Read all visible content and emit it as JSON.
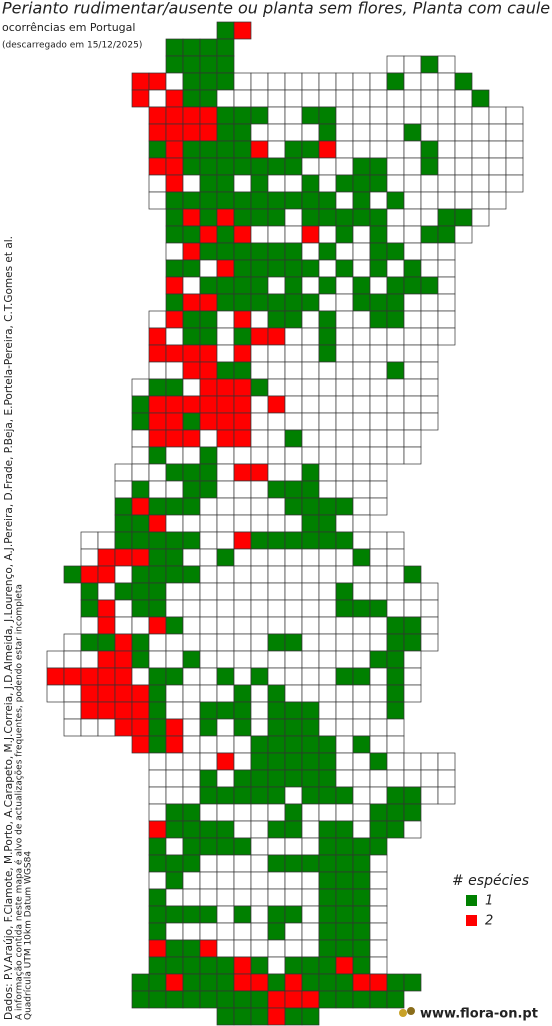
{
  "header": {
    "title": "Perianto rudimentar/ausente ou planta sem flores, Planta com caule e",
    "subtitle": "ocorrências em Portugal",
    "date": "(descarregado em 15/12/2025)"
  },
  "credits": [
    "Dados: P.V.Araújo, F.Clamote, M.Porto, A.Carapeto, M.J.Correia, J.D.Almeida, J.Lourenço, A.J.Pereira, D.Frade, P.Beja, E.Portela-Pereira, C.T.Gomes et al.",
    "A informação contida neste mapa é alvo de actualizações frequentes, podendo estar incompleta",
    "Quadrícula UTM 10km Datum WGS84"
  ],
  "legend": {
    "title": "# espécies",
    "items": [
      {
        "value": 1,
        "color": "#008000"
      },
      {
        "value": 2,
        "color": "#ff0000"
      }
    ]
  },
  "empty_color": "#ffffff",
  "logo": "www.flora-on.pt",
  "map": {
    "rows": [
      [
        null,
        null,
        null,
        null,
        null,
        null,
        null,
        null,
        null,
        null,
        1,
        2
      ],
      [
        null,
        null,
        null,
        null,
        null,
        null,
        null,
        1,
        1,
        1,
        1
      ],
      [
        null,
        null,
        null,
        null,
        null,
        null,
        null,
        1,
        1,
        1,
        1,
        null,
        null,
        null,
        null,
        null,
        null,
        null,
        null,
        null,
        0,
        0,
        1,
        0
      ],
      [
        null,
        null,
        null,
        null,
        null,
        2,
        2,
        0,
        1,
        1,
        1,
        0,
        0,
        0,
        0,
        0,
        0,
        0,
        0,
        0,
        1,
        0,
        0,
        0,
        1
      ],
      [
        null,
        null,
        null,
        null,
        null,
        2,
        0,
        2,
        1,
        1,
        0,
        0,
        0,
        0,
        0,
        0,
        0,
        0,
        0,
        0,
        0,
        0,
        0,
        0,
        0,
        1
      ],
      [
        null,
        null,
        null,
        null,
        null,
        null,
        2,
        2,
        2,
        2,
        1,
        1,
        1,
        0,
        0,
        1,
        1,
        0,
        0,
        0,
        0,
        0,
        0,
        0,
        0,
        0,
        0,
        0
      ],
      [
        null,
        null,
        null,
        null,
        null,
        null,
        2,
        2,
        2,
        2,
        1,
        1,
        0,
        0,
        0,
        0,
        1,
        0,
        0,
        0,
        0,
        1,
        0,
        0,
        0,
        0,
        0,
        0
      ],
      [
        null,
        null,
        null,
        null,
        null,
        null,
        1,
        2,
        1,
        1,
        1,
        1,
        2,
        0,
        1,
        1,
        2,
        0,
        0,
        0,
        0,
        0,
        1,
        0,
        0,
        0,
        0,
        0
      ],
      [
        null,
        null,
        null,
        null,
        null,
        null,
        2,
        2,
        1,
        1,
        1,
        1,
        1,
        1,
        1,
        0,
        0,
        0,
        1,
        1,
        0,
        0,
        1,
        0,
        0,
        0,
        0,
        0
      ],
      [
        null,
        null,
        null,
        null,
        null,
        null,
        0,
        2,
        0,
        1,
        1,
        0,
        1,
        0,
        0,
        1,
        0,
        1,
        1,
        1,
        0,
        0,
        0,
        0,
        0,
        0,
        0,
        0
      ],
      [
        null,
        null,
        null,
        null,
        null,
        null,
        0,
        1,
        1,
        1,
        1,
        1,
        1,
        1,
        1,
        1,
        1,
        0,
        1,
        0,
        1,
        0,
        0,
        0,
        0,
        0,
        0
      ],
      [
        null,
        null,
        null,
        null,
        null,
        null,
        null,
        1,
        2,
        1,
        2,
        1,
        1,
        1,
        0,
        1,
        1,
        1,
        1,
        1,
        0,
        0,
        0,
        1,
        1,
        0
      ],
      [
        null,
        null,
        null,
        null,
        null,
        null,
        null,
        1,
        1,
        2,
        1,
        2,
        0,
        0,
        0,
        2,
        0,
        1,
        0,
        1,
        0,
        0,
        1,
        1,
        0
      ],
      [
        null,
        null,
        null,
        null,
        null,
        null,
        null,
        0,
        2,
        1,
        1,
        1,
        1,
        1,
        1,
        0,
        1,
        0,
        0,
        1,
        1,
        0,
        0,
        0
      ],
      [
        null,
        null,
        null,
        null,
        null,
        null,
        null,
        1,
        1,
        0,
        2,
        1,
        1,
        1,
        1,
        1,
        0,
        1,
        0,
        1,
        0,
        1,
        0,
        0
      ],
      [
        null,
        null,
        null,
        null,
        null,
        null,
        null,
        2,
        0,
        1,
        1,
        1,
        1,
        0,
        1,
        0,
        1,
        0,
        1,
        0,
        1,
        1,
        1,
        0
      ],
      [
        null,
        null,
        null,
        null,
        null,
        null,
        null,
        1,
        2,
        2,
        1,
        1,
        1,
        1,
        1,
        1,
        0,
        0,
        1,
        1,
        1,
        0,
        0,
        0
      ],
      [
        null,
        null,
        null,
        null,
        null,
        null,
        0,
        2,
        1,
        1,
        0,
        2,
        0,
        1,
        1,
        0,
        1,
        0,
        0,
        1,
        1,
        0,
        0,
        0
      ],
      [
        null,
        null,
        null,
        null,
        null,
        null,
        2,
        0,
        1,
        1,
        0,
        1,
        2,
        2,
        0,
        0,
        1,
        0,
        0,
        0,
        0,
        0,
        0,
        0
      ],
      [
        null,
        null,
        null,
        null,
        null,
        null,
        2,
        2,
        2,
        2,
        0,
        2,
        0,
        0,
        0,
        0,
        1,
        0,
        0,
        0,
        0,
        0,
        0
      ],
      [
        null,
        null,
        null,
        null,
        null,
        null,
        0,
        0,
        2,
        2,
        1,
        1,
        0,
        0,
        0,
        0,
        0,
        0,
        0,
        0,
        1,
        0,
        0
      ],
      [
        null,
        null,
        null,
        null,
        null,
        0,
        1,
        1,
        0,
        2,
        2,
        2,
        1,
        0,
        0,
        0,
        0,
        0,
        0,
        0,
        0,
        0,
        0
      ],
      [
        null,
        null,
        null,
        null,
        null,
        1,
        2,
        2,
        2,
        2,
        2,
        2,
        0,
        2,
        0,
        0,
        0,
        0,
        0,
        0,
        0,
        0,
        0
      ],
      [
        null,
        null,
        null,
        null,
        null,
        1,
        2,
        2,
        1,
        2,
        2,
        2,
        0,
        0,
        0,
        0,
        0,
        0,
        0,
        0,
        0,
        0,
        0
      ],
      [
        null,
        null,
        null,
        null,
        null,
        0,
        2,
        2,
        2,
        0,
        2,
        2,
        0,
        0,
        1,
        0,
        0,
        0,
        0,
        0,
        0,
        0
      ],
      [
        null,
        null,
        null,
        null,
        null,
        0,
        1,
        0,
        0,
        1,
        0,
        0,
        0,
        0,
        0,
        0,
        0,
        0,
        0,
        0,
        0,
        0
      ],
      [
        null,
        null,
        null,
        null,
        0,
        0,
        0,
        1,
        1,
        1,
        0,
        2,
        2,
        0,
        0,
        1,
        0,
        0,
        0,
        0
      ],
      [
        null,
        null,
        null,
        null,
        0,
        1,
        0,
        0,
        1,
        1,
        0,
        0,
        0,
        1,
        1,
        1,
        0,
        0,
        0,
        0
      ],
      [
        null,
        null,
        null,
        null,
        1,
        2,
        1,
        1,
        1,
        0,
        0,
        0,
        0,
        0,
        1,
        1,
        1,
        1,
        0,
        0
      ],
      [
        null,
        null,
        null,
        null,
        1,
        1,
        2,
        0,
        0,
        0,
        0,
        0,
        0,
        0,
        0,
        1,
        1,
        0,
        0
      ],
      [
        null,
        null,
        0,
        0,
        1,
        1,
        1,
        1,
        1,
        0,
        0,
        2,
        1,
        1,
        1,
        1,
        1,
        1,
        0,
        0,
        0
      ],
      [
        null,
        null,
        0,
        2,
        2,
        2,
        1,
        1,
        0,
        0,
        1,
        0,
        0,
        0,
        0,
        0,
        0,
        0,
        1,
        0,
        0
      ],
      [
        null,
        1,
        2,
        2,
        0,
        1,
        1,
        1,
        1,
        0,
        0,
        0,
        0,
        0,
        0,
        0,
        0,
        0,
        0,
        0,
        0,
        1
      ],
      [
        null,
        null,
        1,
        0,
        1,
        1,
        1,
        0,
        0,
        0,
        0,
        0,
        0,
        0,
        0,
        0,
        0,
        1,
        0,
        0,
        0,
        0,
        0
      ],
      [
        null,
        null,
        1,
        2,
        0,
        1,
        1,
        0,
        0,
        0,
        0,
        0,
        0,
        0,
        0,
        0,
        0,
        1,
        1,
        1,
        0,
        0,
        0
      ],
      [
        null,
        null,
        0,
        2,
        0,
        0,
        2,
        1,
        0,
        0,
        0,
        0,
        0,
        0,
        0,
        0,
        0,
        0,
        0,
        0,
        1,
        1,
        0
      ],
      [
        null,
        0,
        1,
        1,
        2,
        1,
        0,
        0,
        0,
        0,
        0,
        0,
        0,
        1,
        1,
        0,
        0,
        0,
        0,
        0,
        1,
        1,
        0
      ],
      [
        0,
        0,
        0,
        2,
        2,
        1,
        0,
        0,
        1,
        0,
        0,
        0,
        0,
        0,
        0,
        0,
        0,
        0,
        0,
        1,
        1,
        0
      ],
      [
        2,
        2,
        2,
        2,
        2,
        0,
        1,
        1,
        0,
        0,
        1,
        0,
        1,
        0,
        0,
        0,
        0,
        1,
        1,
        0,
        1,
        0
      ],
      [
        0,
        0,
        2,
        2,
        2,
        2,
        1,
        0,
        0,
        0,
        0,
        1,
        0,
        1,
        0,
        0,
        0,
        0,
        0,
        0,
        1,
        0
      ],
      [
        null,
        0,
        2,
        2,
        2,
        2,
        1,
        0,
        0,
        1,
        1,
        1,
        0,
        1,
        1,
        1,
        0,
        0,
        0,
        0,
        1
      ],
      [
        null,
        0,
        0,
        0,
        2,
        2,
        1,
        2,
        0,
        1,
        0,
        1,
        0,
        1,
        1,
        1,
        0,
        0,
        0,
        0,
        0
      ],
      [
        null,
        null,
        null,
        null,
        null,
        2,
        1,
        2,
        0,
        0,
        0,
        0,
        1,
        1,
        1,
        1,
        1,
        0,
        1,
        0,
        0
      ],
      [
        null,
        null,
        null,
        null,
        null,
        null,
        0,
        0,
        0,
        0,
        2,
        0,
        1,
        1,
        1,
        1,
        1,
        0,
        0,
        1,
        0,
        0,
        0,
        0
      ],
      [
        null,
        null,
        null,
        null,
        null,
        null,
        0,
        0,
        0,
        1,
        0,
        1,
        1,
        1,
        1,
        1,
        1,
        0,
        0,
        0,
        0,
        0,
        0,
        0
      ],
      [
        null,
        null,
        null,
        null,
        null,
        null,
        0,
        0,
        0,
        1,
        1,
        1,
        1,
        1,
        0,
        1,
        1,
        1,
        0,
        0,
        1,
        1,
        0,
        0
      ],
      [
        null,
        null,
        null,
        null,
        null,
        null,
        0,
        1,
        1,
        0,
        0,
        0,
        0,
        0,
        1,
        0,
        0,
        0,
        0,
        1,
        1,
        1
      ],
      [
        null,
        null,
        null,
        null,
        null,
        null,
        2,
        1,
        1,
        1,
        1,
        0,
        0,
        1,
        1,
        0,
        1,
        1,
        0,
        1,
        1,
        0
      ],
      [
        null,
        null,
        null,
        null,
        null,
        null,
        1,
        0,
        1,
        1,
        1,
        1,
        0,
        0,
        0,
        0,
        1,
        1,
        1,
        1
      ],
      [
        null,
        null,
        null,
        null,
        null,
        null,
        1,
        1,
        1,
        0,
        0,
        0,
        0,
        1,
        1,
        1,
        1,
        1,
        1,
        0
      ],
      [
        null,
        null,
        null,
        null,
        null,
        null,
        0,
        1,
        0,
        0,
        0,
        0,
        0,
        0,
        0,
        0,
        1,
        1,
        1,
        0
      ],
      [
        null,
        null,
        null,
        null,
        null,
        null,
        1,
        0,
        0,
        0,
        0,
        0,
        0,
        0,
        0,
        0,
        1,
        1,
        1,
        0
      ],
      [
        null,
        null,
        null,
        null,
        null,
        null,
        1,
        1,
        1,
        1,
        0,
        1,
        0,
        1,
        1,
        0,
        1,
        1,
        1,
        0
      ],
      [
        null,
        null,
        null,
        null,
        null,
        null,
        1,
        0,
        0,
        0,
        0,
        0,
        0,
        1,
        0,
        0,
        1,
        1,
        1,
        0
      ],
      [
        null,
        null,
        null,
        null,
        null,
        null,
        2,
        1,
        1,
        2,
        0,
        0,
        0,
        0,
        0,
        0,
        1,
        1,
        1,
        0
      ],
      [
        null,
        null,
        null,
        null,
        null,
        null,
        1,
        1,
        1,
        1,
        1,
        2,
        1,
        0,
        1,
        1,
        1,
        2,
        1,
        0
      ],
      [
        null,
        null,
        null,
        null,
        null,
        1,
        1,
        2,
        1,
        1,
        1,
        2,
        2,
        1,
        2,
        1,
        1,
        1,
        2,
        2,
        1,
        1
      ],
      [
        null,
        null,
        null,
        null,
        null,
        1,
        1,
        1,
        1,
        1,
        1,
        1,
        1,
        2,
        2,
        2,
        1,
        1,
        1,
        1,
        1
      ],
      [
        null,
        null,
        null,
        null,
        null,
        null,
        null,
        null,
        null,
        null,
        1,
        1,
        1,
        2,
        1,
        1
      ]
    ]
  }
}
